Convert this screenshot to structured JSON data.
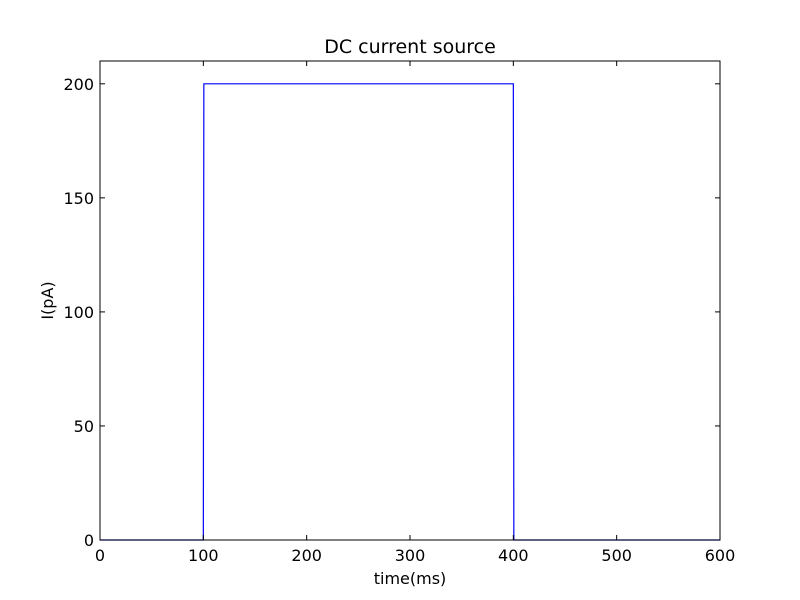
{
  "chart_data": {
    "type": "line",
    "title": "DC current source",
    "xlabel": "time(ms)",
    "ylabel": "I(pA)",
    "xlim": [
      0,
      600
    ],
    "ylim": [
      0,
      210
    ],
    "xticks": [
      0,
      100,
      200,
      300,
      400,
      500,
      600
    ],
    "yticks": [
      0,
      50,
      100,
      150,
      200
    ],
    "xtick_labels": [
      "0",
      "100",
      "200",
      "300",
      "400",
      "500",
      "600"
    ],
    "ytick_labels": [
      "0",
      "50",
      "100",
      "150",
      "200"
    ],
    "grid": false,
    "series": [
      {
        "color": "#0000ff",
        "x": [
          0,
          100,
          100.5,
          400,
          400.5,
          600
        ],
        "y": [
          0,
          0,
          200,
          200,
          0,
          0
        ]
      }
    ]
  }
}
